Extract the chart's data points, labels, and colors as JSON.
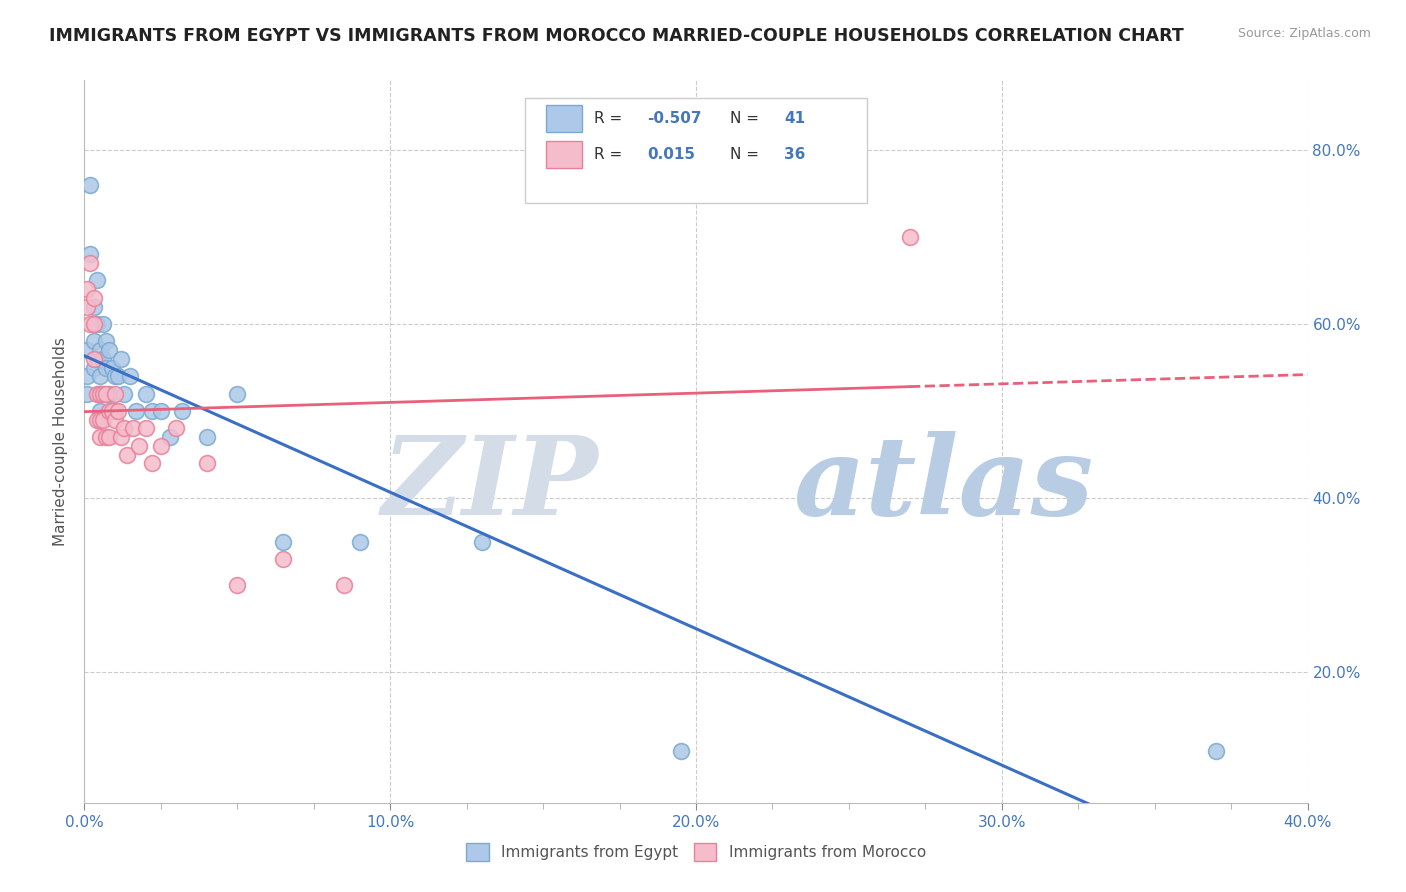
{
  "title": "IMMIGRANTS FROM EGYPT VS IMMIGRANTS FROM MOROCCO MARRIED-COUPLE HOUSEHOLDS CORRELATION CHART",
  "source_text": "Source: ZipAtlas.com",
  "ylabel": "Married-couple Households",
  "xlim": [
    0.0,
    0.4
  ],
  "ylim": [
    0.05,
    0.88
  ],
  "xticks_major": [
    0.0,
    0.1,
    0.2,
    0.3,
    0.4
  ],
  "xticks_minor": [
    0.0,
    0.025,
    0.05,
    0.075,
    0.1,
    0.125,
    0.15,
    0.175,
    0.2,
    0.225,
    0.25,
    0.275,
    0.3,
    0.325,
    0.35,
    0.375,
    0.4
  ],
  "xtick_labels": [
    "0.0%",
    "10.0%",
    "20.0%",
    "30.0%",
    "40.0%"
  ],
  "yticks": [
    0.2,
    0.4,
    0.6,
    0.8
  ],
  "ytick_labels": [
    "20.0%",
    "40.0%",
    "60.0%",
    "80.0%"
  ],
  "egypt_color": "#adc8e8",
  "egypt_edge_color": "#7aaad0",
  "morocco_color": "#f5bccb",
  "morocco_edge_color": "#e8809a",
  "egypt_line_color": "#3a6fc4",
  "morocco_line_color": "#e8607a",
  "egypt_R": -0.507,
  "egypt_N": 41,
  "morocco_R": 0.015,
  "morocco_N": 36,
  "legend_label_egypt": "Immigrants from Egypt",
  "legend_label_morocco": "Immigrants from Morocco",
  "egypt_scatter_x": [
    0.001,
    0.001,
    0.001,
    0.002,
    0.002,
    0.003,
    0.003,
    0.003,
    0.004,
    0.004,
    0.004,
    0.005,
    0.005,
    0.005,
    0.005,
    0.006,
    0.006,
    0.007,
    0.007,
    0.008,
    0.008,
    0.009,
    0.01,
    0.01,
    0.011,
    0.012,
    0.013,
    0.015,
    0.017,
    0.02,
    0.022,
    0.025,
    0.028,
    0.032,
    0.04,
    0.05,
    0.065,
    0.09,
    0.13,
    0.195,
    0.37
  ],
  "egypt_scatter_y": [
    0.57,
    0.54,
    0.52,
    0.76,
    0.68,
    0.62,
    0.58,
    0.55,
    0.65,
    0.6,
    0.56,
    0.57,
    0.54,
    0.52,
    0.5,
    0.6,
    0.56,
    0.58,
    0.55,
    0.57,
    0.52,
    0.55,
    0.54,
    0.5,
    0.54,
    0.56,
    0.52,
    0.54,
    0.5,
    0.52,
    0.5,
    0.5,
    0.47,
    0.5,
    0.47,
    0.52,
    0.35,
    0.35,
    0.35,
    0.11,
    0.11
  ],
  "morocco_scatter_x": [
    0.001,
    0.001,
    0.002,
    0.002,
    0.003,
    0.003,
    0.003,
    0.004,
    0.004,
    0.005,
    0.005,
    0.005,
    0.006,
    0.006,
    0.007,
    0.007,
    0.008,
    0.008,
    0.009,
    0.01,
    0.01,
    0.011,
    0.012,
    0.013,
    0.014,
    0.016,
    0.018,
    0.02,
    0.022,
    0.025,
    0.03,
    0.04,
    0.05,
    0.065,
    0.085,
    0.27
  ],
  "morocco_scatter_y": [
    0.64,
    0.62,
    0.67,
    0.6,
    0.63,
    0.6,
    0.56,
    0.52,
    0.49,
    0.52,
    0.49,
    0.47,
    0.52,
    0.49,
    0.52,
    0.47,
    0.5,
    0.47,
    0.5,
    0.52,
    0.49,
    0.5,
    0.47,
    0.48,
    0.45,
    0.48,
    0.46,
    0.48,
    0.44,
    0.46,
    0.48,
    0.44,
    0.3,
    0.33,
    0.3,
    0.7
  ],
  "background_color": "#ffffff",
  "grid_color": "#cccccc",
  "title_color": "#222222",
  "tick_color": "#4477bb",
  "watermark_zip_color": "#d0d8e8",
  "watermark_atlas_color": "#b8cce4"
}
